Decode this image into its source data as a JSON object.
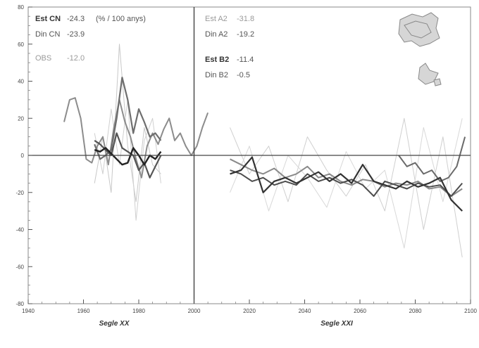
{
  "chart_data": {
    "type": "line",
    "xlim": [
      1940,
      2100
    ],
    "ylim": [
      -80,
      80
    ],
    "x_ticks": [
      "1940",
      "1960",
      "1980",
      "2000",
      "2020",
      "2040",
      "2060",
      "2080",
      "2100"
    ],
    "y_ticks": [
      "80",
      "60",
      "40",
      "20",
      "0",
      "-20",
      "-40",
      "-60",
      "-80"
    ],
    "x_titles": [
      "Segle XX",
      "Segle XXI"
    ],
    "annotation": "(% / 100 anys)",
    "legend": [
      {
        "label": "Est CN",
        "value": "-24.3",
        "style": "bold"
      },
      {
        "label": "Din CN",
        "value": "-23.9",
        "style": "normal"
      },
      {
        "label": "OBS",
        "value": "-12.0",
        "style": "light"
      },
      {
        "label": "Est A2",
        "value": "-31.8",
        "style": "light"
      },
      {
        "label": "Din A2",
        "value": "-19.2",
        "style": "normal"
      },
      {
        "label": "Est B2",
        "value": "-11.4",
        "style": "bold"
      },
      {
        "label": "Din B2",
        "value": "-0.5",
        "style": "normal"
      }
    ],
    "series": [
      {
        "color": "#8c8c8c",
        "width": 2,
        "x": [
          1953,
          1955,
          1957,
          1959,
          1961,
          1963,
          1965,
          1967,
          1969,
          1971,
          1973,
          1975,
          1977,
          1979,
          1981,
          1983,
          1985,
          1987,
          1989,
          1991,
          1993,
          1995,
          1997,
          1999,
          2001,
          2003,
          2005
        ],
        "y": [
          18,
          30,
          31,
          20,
          -2,
          -4,
          5,
          10,
          -5,
          15,
          30,
          18,
          10,
          -2,
          -12,
          5,
          12,
          6,
          14,
          20,
          8,
          12,
          5,
          0,
          5,
          15,
          23
        ]
      },
      {
        "color": "#6e6e6e",
        "width": 2.2,
        "x": [
          1964,
          1966,
          1968,
          1970,
          1972,
          1974,
          1976,
          1978,
          1980,
          1982,
          1984,
          1986,
          1988
        ],
        "y": [
          6,
          -2,
          0,
          3,
          20,
          42,
          30,
          12,
          25,
          18,
          10,
          12,
          8
        ]
      },
      {
        "color": "#555555",
        "width": 2.2,
        "x": [
          1964,
          1966,
          1968,
          1970,
          1972,
          1974,
          1976,
          1978,
          1980,
          1982,
          1984,
          1986,
          1988
        ],
        "y": [
          8,
          6,
          3,
          0,
          12,
          4,
          2,
          0,
          -8,
          -4,
          -12,
          -6,
          0
        ]
      },
      {
        "color": "#222222",
        "width": 2.4,
        "x": [
          1964,
          1966,
          1968,
          1970,
          1972,
          1974,
          1976,
          1978,
          1980,
          1982,
          1984,
          1986,
          1988
        ],
        "y": [
          3,
          2,
          4,
          1,
          -2,
          -5,
          -4,
          4,
          0,
          -5,
          0,
          -2,
          2
        ]
      },
      {
        "color": "#8a8a8a",
        "width": 2,
        "x": [
          2013,
          2017,
          2021,
          2025,
          2029,
          2033,
          2037,
          2041,
          2045,
          2049,
          2053,
          2057,
          2061,
          2065,
          2069,
          2073,
          2077,
          2081,
          2085,
          2089,
          2093,
          2097
        ],
        "y": [
          -2,
          -5,
          -8,
          -10,
          -7,
          -12,
          -10,
          -6,
          -12,
          -10,
          -14,
          -16,
          -13,
          -14,
          -17,
          -15,
          -16,
          -14,
          -18,
          -17,
          -22,
          -18
        ]
      },
      {
        "color": "#4d4d4d",
        "width": 2,
        "x": [
          2013,
          2017,
          2021,
          2025,
          2029,
          2033,
          2037,
          2041,
          2045,
          2049,
          2053,
          2057,
          2061,
          2065,
          2069,
          2073,
          2077,
          2081,
          2085,
          2089,
          2093,
          2097
        ],
        "y": [
          -8,
          -10,
          -14,
          -12,
          -16,
          -14,
          -16,
          -10,
          -14,
          -12,
          -15,
          -13,
          -16,
          -22,
          -14,
          -16,
          -18,
          -15,
          -17,
          -16,
          -22,
          -15
        ]
      },
      {
        "color": "#333333",
        "width": 2.2,
        "x": [
          2013,
          2017,
          2021,
          2025,
          2029,
          2033,
          2037,
          2041,
          2045,
          2049,
          2053,
          2057,
          2061,
          2065,
          2069,
          2073,
          2077,
          2081,
          2085,
          2089,
          2093,
          2097
        ],
        "y": [
          -10,
          -8,
          -1,
          -20,
          -14,
          -12,
          -15,
          -12,
          -9,
          -14,
          -10,
          -15,
          -5,
          -14,
          -16,
          -18,
          -14,
          -17,
          -15,
          -12,
          -24,
          -30
        ]
      },
      {
        "color": "#6a6a6a",
        "width": 2,
        "x": [
          2074,
          2077,
          2080,
          2083,
          2086,
          2089,
          2092,
          2095,
          2098
        ],
        "y": [
          0,
          -6,
          -4,
          -10,
          -8,
          -14,
          -12,
          -6,
          10
        ]
      },
      {
        "color": "#c8c8c8",
        "width": 1,
        "x": [
          1964,
          1967,
          1970,
          1973,
          1976,
          1979,
          1982,
          1985,
          1988
        ],
        "y": [
          -15,
          10,
          -20,
          60,
          5,
          -25,
          15,
          -5,
          -10
        ]
      },
      {
        "color": "#d0d0d0",
        "width": 1,
        "x": [
          1964,
          1967,
          1970,
          1973,
          1976,
          1979,
          1982,
          1985,
          1988
        ],
        "y": [
          12,
          -10,
          25,
          -5,
          30,
          -35,
          8,
          20,
          -15
        ]
      },
      {
        "color": "#cfcfcf",
        "width": 1,
        "x": [
          2013,
          2020,
          2027,
          2034,
          2041,
          2048,
          2055,
          2062,
          2069,
          2076,
          2083,
          2090,
          2097
        ],
        "y": [
          15,
          -10,
          5,
          -25,
          10,
          -8,
          -22,
          -5,
          -30,
          20,
          -40,
          10,
          -55
        ]
      },
      {
        "color": "#d8d8d8",
        "width": 1,
        "x": [
          2013,
          2020,
          2027,
          2034,
          2041,
          2048,
          2055,
          2062,
          2069,
          2076,
          2083,
          2090,
          2097
        ],
        "y": [
          -20,
          5,
          -30,
          0,
          -12,
          -28,
          2,
          -18,
          -8,
          -50,
          15,
          -25,
          20
        ]
      }
    ]
  }
}
